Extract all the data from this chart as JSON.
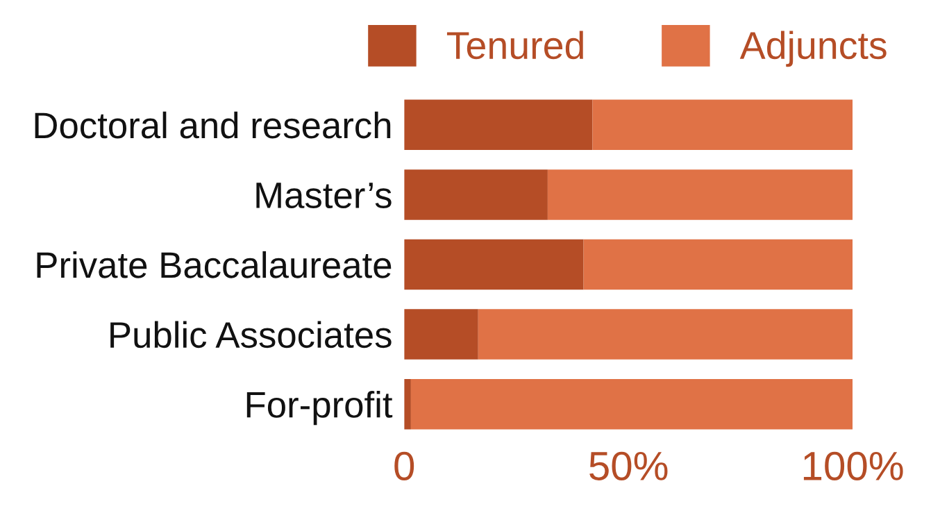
{
  "chart_data": {
    "type": "bar",
    "orientation": "horizontal",
    "stacked": true,
    "categories": [
      "Doctoral and research",
      "Master’s",
      "Private Baccalaureate",
      "Public Associates",
      "For-profit"
    ],
    "series": [
      {
        "name": "Tenured",
        "color": "#b54d26",
        "values": [
          42,
          32,
          40,
          16.5,
          1.5
        ]
      },
      {
        "name": "Adjuncts",
        "color": "#e07246",
        "values": [
          58,
          68,
          60,
          83.5,
          98.5
        ]
      }
    ],
    "xlim": [
      0,
      100
    ],
    "xticks": [
      {
        "value": 0,
        "label": "0"
      },
      {
        "value": 50,
        "label": "50%"
      },
      {
        "value": 100,
        "label": "100%"
      }
    ],
    "grid": false,
    "legend": "top"
  }
}
